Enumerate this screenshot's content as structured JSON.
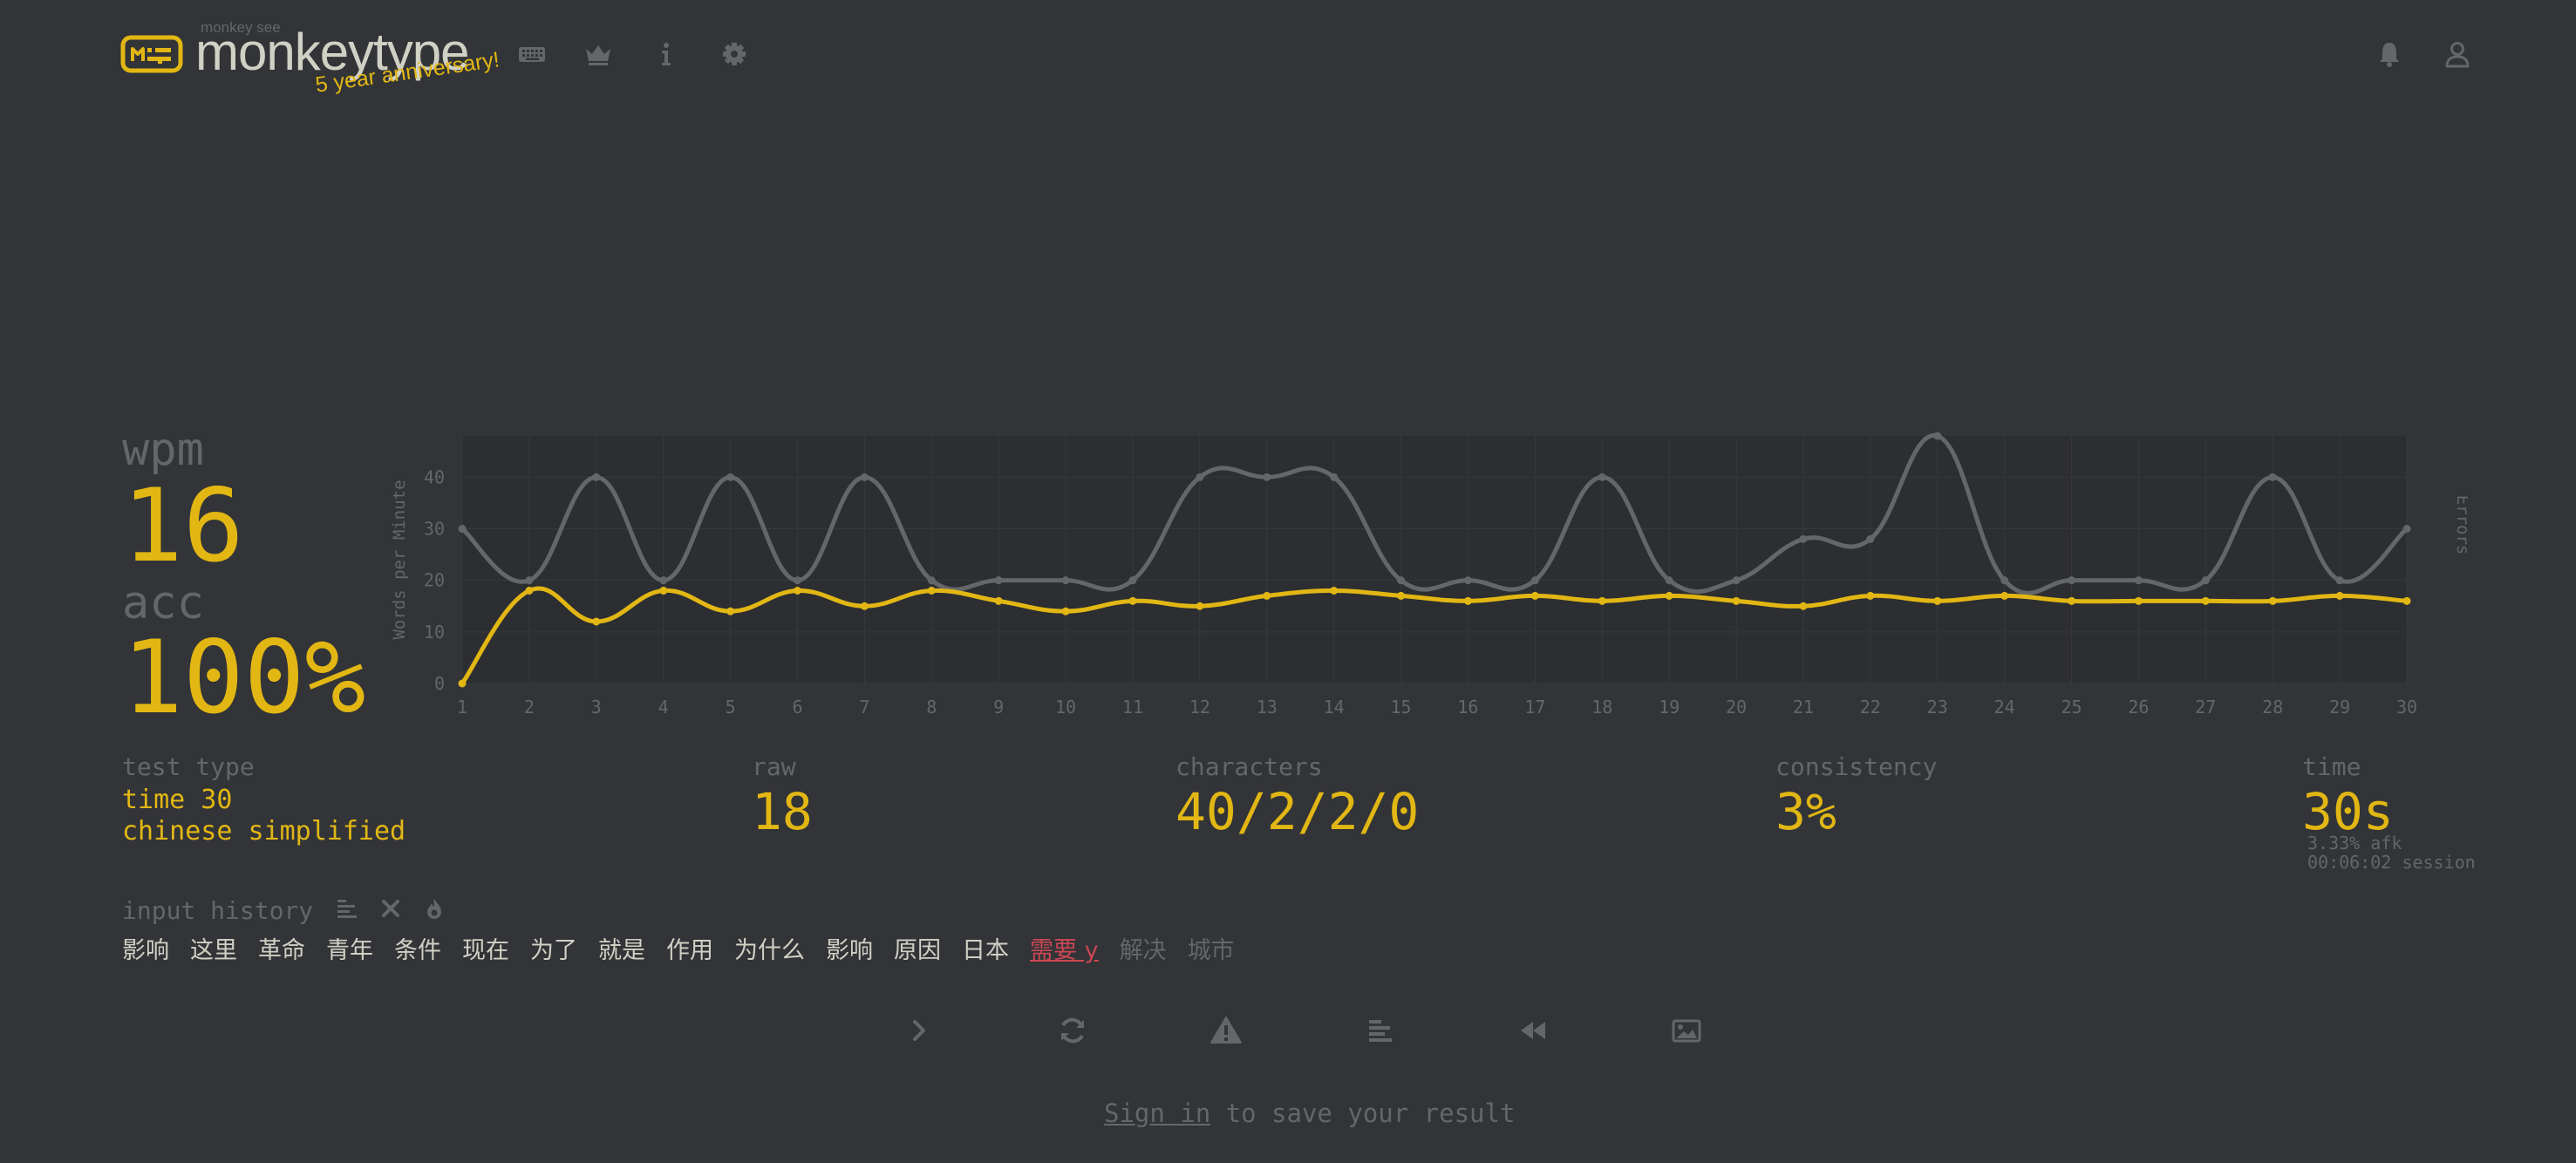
{
  "header": {
    "logo_small": "monkey see",
    "logo_text": "monkeytype",
    "anniversary": "5 year anniversary!",
    "nav_icons": [
      "keyboard-icon",
      "crown-icon",
      "info-icon",
      "gear-icon"
    ],
    "right_icons": [
      "bell-icon",
      "user-icon"
    ]
  },
  "stats": {
    "wpm_label": "wpm",
    "wpm_value": "16",
    "acc_label": "acc",
    "acc_value": "100%"
  },
  "details": {
    "test_type_label": "test type",
    "test_type_line1": "time 30",
    "test_type_line2": "chinese simplified",
    "raw_label": "raw",
    "raw_value": "18",
    "characters_label": "characters",
    "characters_value": "40/2/2/0",
    "consistency_label": "consistency",
    "consistency_value": "3%",
    "time_label": "time",
    "time_value": "30s",
    "afk": "3.33% afk",
    "session": "00:06:02 session"
  },
  "input_history": {
    "label": "input history",
    "words": [
      {
        "text": "影响",
        "state": "correct"
      },
      {
        "text": "这里",
        "state": "correct"
      },
      {
        "text": "革命",
        "state": "correct"
      },
      {
        "text": "青年",
        "state": "correct"
      },
      {
        "text": "条件",
        "state": "correct"
      },
      {
        "text": "现在",
        "state": "correct"
      },
      {
        "text": "为了",
        "state": "correct"
      },
      {
        "text": "就是",
        "state": "correct"
      },
      {
        "text": "作用",
        "state": "correct"
      },
      {
        "text": "为什么",
        "state": "correct"
      },
      {
        "text": "影响",
        "state": "correct"
      },
      {
        "text": "原因",
        "state": "correct"
      },
      {
        "text": "日本",
        "state": "correct"
      },
      {
        "text": "需要 y",
        "state": "error"
      },
      {
        "text": "解决",
        "state": "untyped"
      },
      {
        "text": "城市",
        "state": "untyped"
      }
    ]
  },
  "footer": {
    "signin_link": "Sign in",
    "signin_rest": " to save your result"
  },
  "colors": {
    "background": "#323437",
    "main": "#e2b714",
    "sub": "#646669",
    "text": "#d1d0c5",
    "error": "#ca4754",
    "raw_line": "#646669"
  },
  "chart_data": {
    "type": "line",
    "x": [
      1,
      2,
      3,
      4,
      5,
      6,
      7,
      8,
      9,
      10,
      11,
      12,
      13,
      14,
      15,
      16,
      17,
      18,
      19,
      20,
      21,
      22,
      23,
      24,
      25,
      26,
      27,
      28,
      29,
      30
    ],
    "series": [
      {
        "name": "wpm",
        "color": "#e2b714",
        "values": [
          0,
          18,
          12,
          18,
          14,
          18,
          15,
          18,
          16,
          14,
          16,
          15,
          17,
          18,
          17,
          16,
          17,
          16,
          17,
          16,
          15,
          17,
          16,
          17,
          16,
          16,
          16,
          16,
          17,
          16
        ]
      },
      {
        "name": "raw",
        "color": "#646669",
        "values": [
          30,
          20,
          40,
          20,
          40,
          20,
          40,
          20,
          20,
          20,
          20,
          40,
          40,
          40,
          20,
          20,
          20,
          40,
          20,
          20,
          28,
          28,
          48,
          20,
          20,
          20,
          20,
          40,
          20,
          30
        ]
      }
    ],
    "ylabel": "Words per Minute",
    "y2label": "Errors",
    "yticks": [
      0,
      10,
      20,
      30,
      40
    ],
    "ylim": [
      0,
      48
    ],
    "xlim": [
      1,
      30
    ],
    "grid": true
  }
}
